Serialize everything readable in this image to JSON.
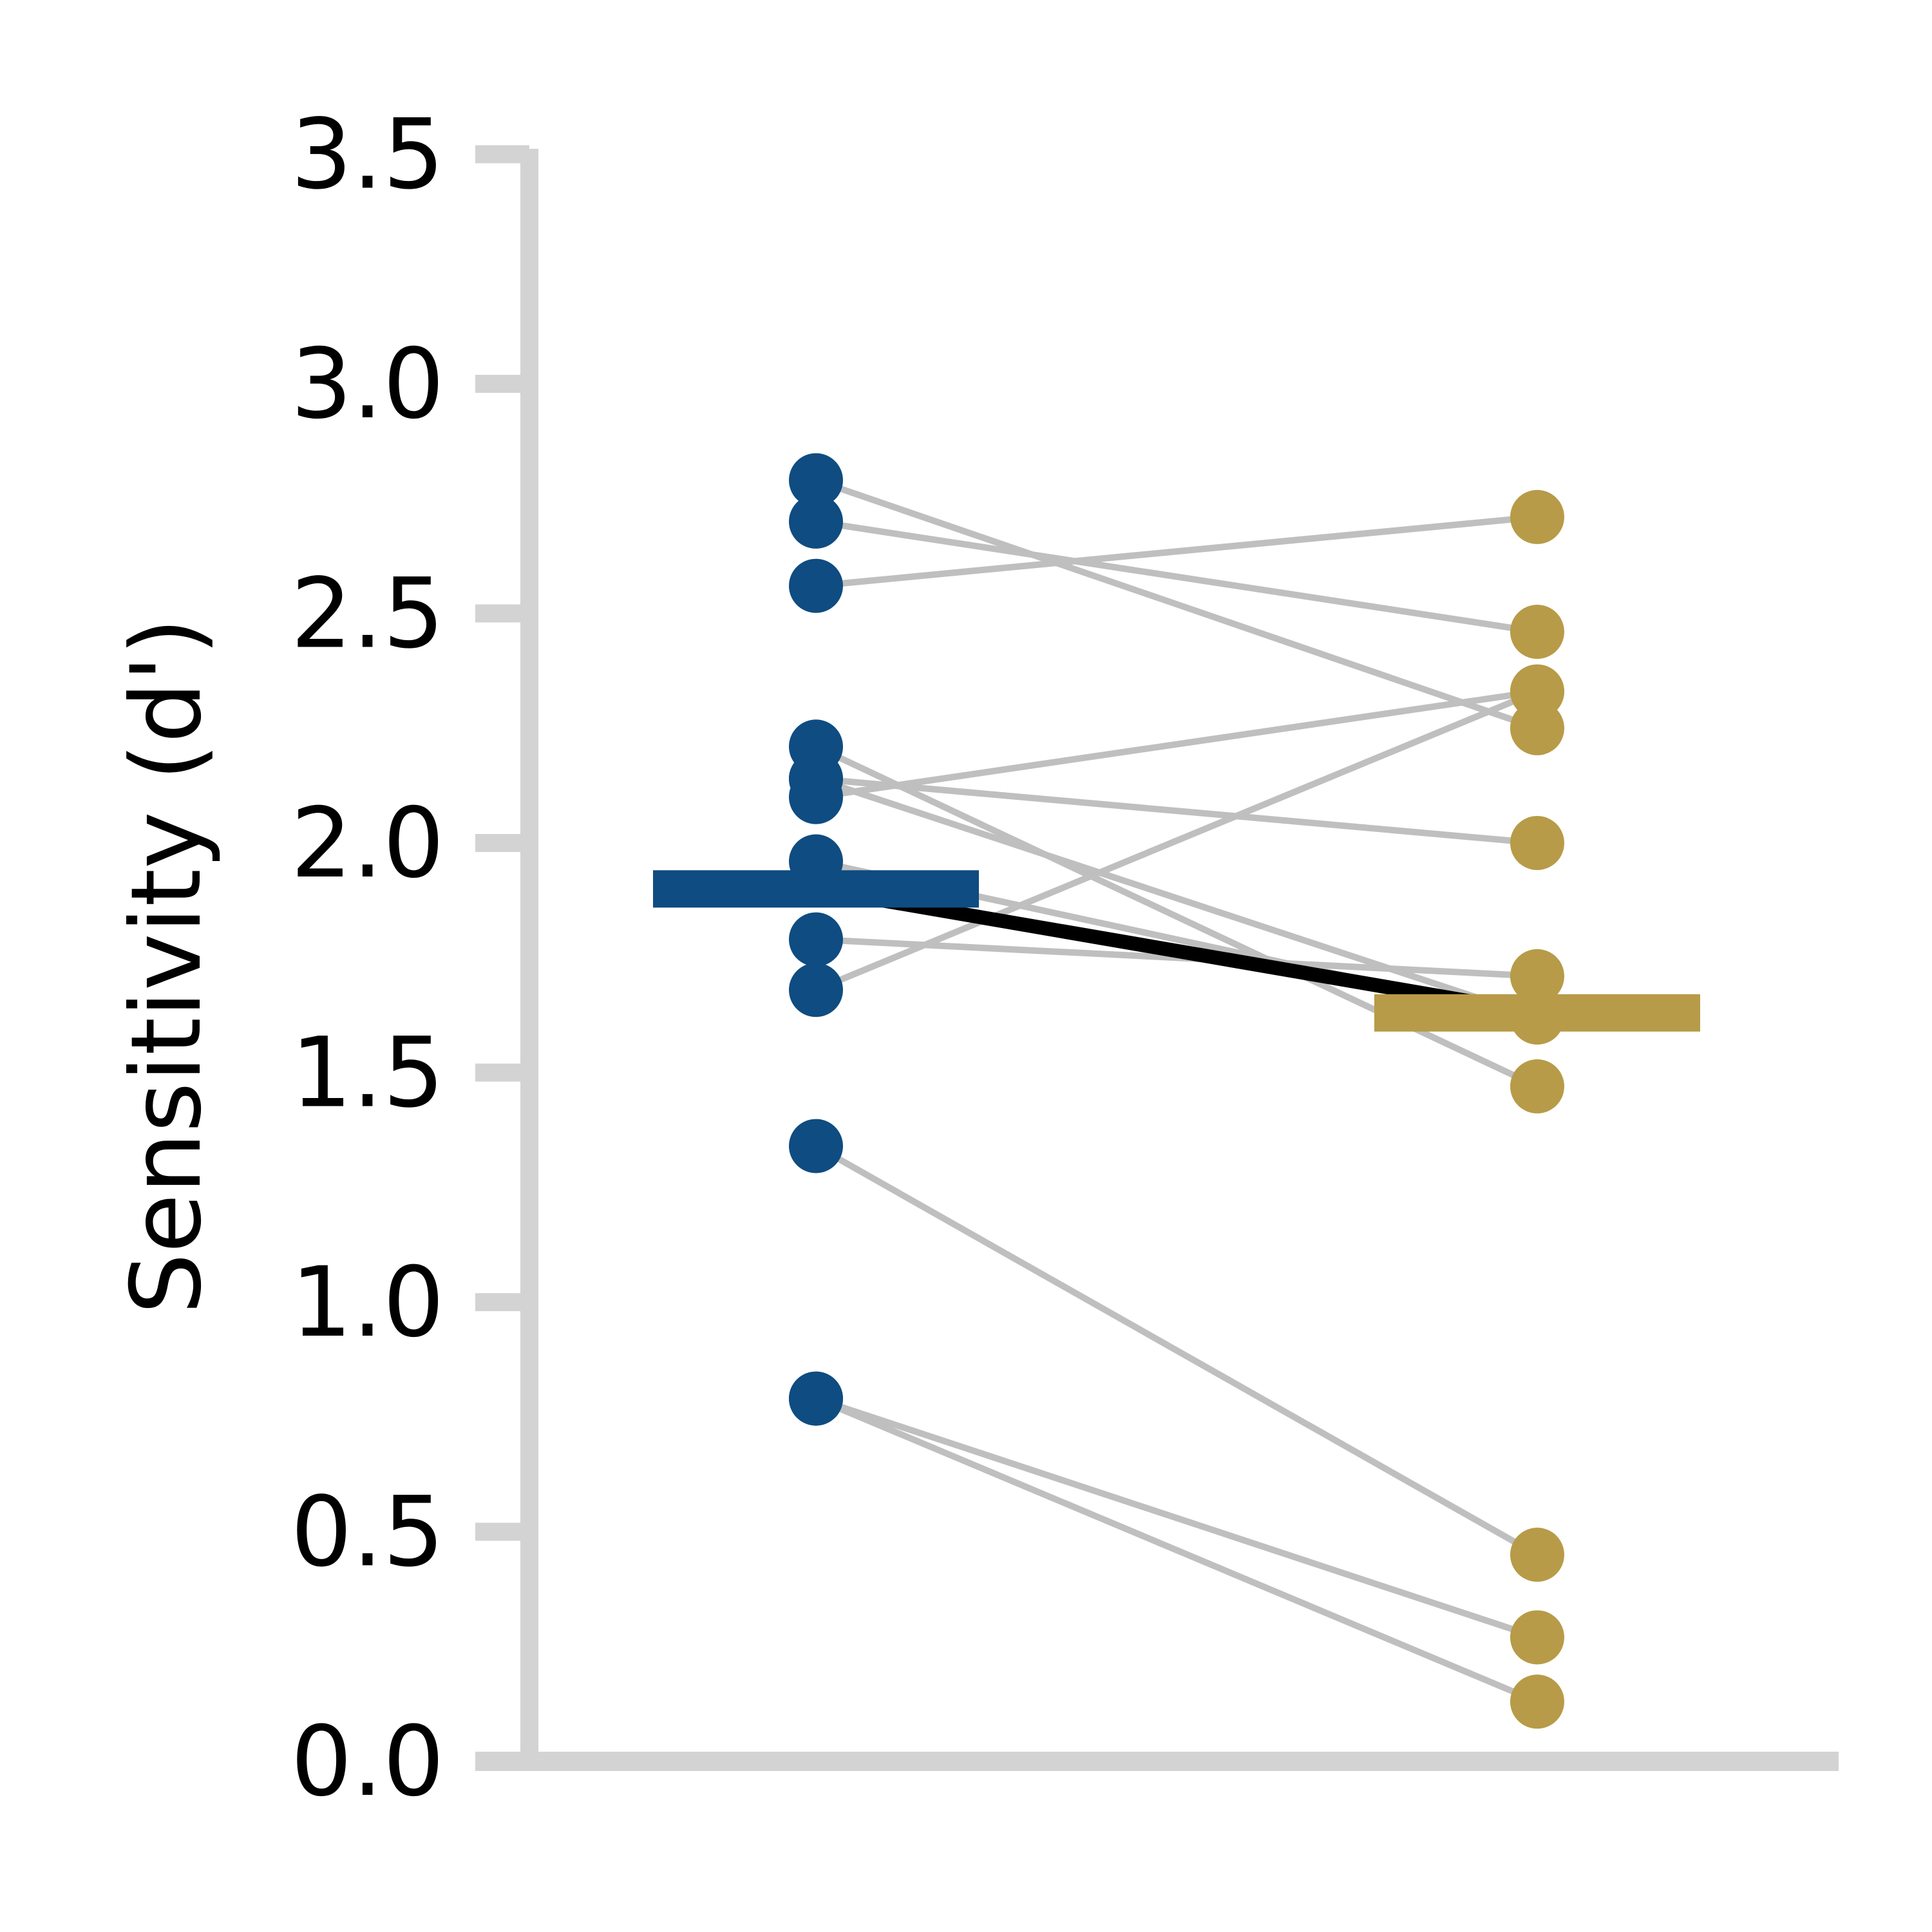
{
  "chart_data": {
    "type": "scatter",
    "subtype": "paired-dot-plot",
    "ylabel": "Sensitivity (d')",
    "xlabel": "",
    "ylim": [
      0,
      3.5
    ],
    "yticks": [
      "0.0",
      "0.5",
      "1.0",
      "1.5",
      "2.0",
      "2.5",
      "3.0",
      "3.5"
    ],
    "grid": false,
    "legend": "none",
    "colors": {
      "condition_1": "#0f4c81",
      "condition_2": "#b79b48",
      "axis": "#d3d3d3",
      "pair_line": "#bfbfbf",
      "mean_line": "#000000"
    },
    "pairs": [
      [
        2.79,
        2.25
      ],
      [
        2.7,
        2.46
      ],
      [
        2.56,
        2.71
      ],
      [
        2.21,
        1.47
      ],
      [
        2.14,
        1.62
      ],
      [
        2.14,
        2.0
      ],
      [
        2.1,
        2.33
      ],
      [
        1.96,
        1.62
      ],
      [
        1.79,
        1.71
      ],
      [
        1.68,
        2.33
      ],
      [
        1.34,
        0.45
      ],
      [
        0.79,
        0.27
      ],
      [
        0.79,
        0.13
      ]
    ],
    "means": [
      1.9,
      1.63
    ]
  }
}
